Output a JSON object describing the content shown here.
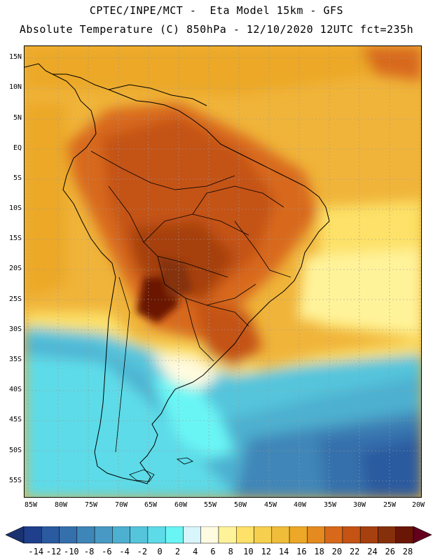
{
  "header": {
    "line1": "CPTEC/INPE/MCT -  Eta Model 15km - GFS",
    "line2": "Absolute Temperature (C) 850hPa - 12/10/2020 12UTC fct=235h"
  },
  "map": {
    "lat_labels": [
      "15N",
      "10N",
      "5N",
      "EQ",
      "5S",
      "10S",
      "15S",
      "20S",
      "25S",
      "30S",
      "35S",
      "40S",
      "45S",
      "50S",
      "55S"
    ],
    "lon_labels": [
      "85W",
      "80W",
      "75W",
      "70W",
      "65W",
      "60W",
      "55W",
      "50W",
      "45W",
      "40W",
      "35W",
      "30W",
      "25W",
      "20W"
    ]
  },
  "colorbar": {
    "labels": [
      "-14",
      "-12",
      "-10",
      "-8",
      "-6",
      "-4",
      "-2",
      "0",
      "2",
      "4",
      "6",
      "8",
      "10",
      "12",
      "14",
      "16",
      "18",
      "20",
      "22",
      "24",
      "26",
      "28"
    ],
    "colors": [
      "#1f3f8c",
      "#2a5a9f",
      "#3570ac",
      "#3f86b8",
      "#489ac4",
      "#4eb0d0",
      "#55c5dc",
      "#5ddbe8",
      "#6af5f5",
      "#d8f5fb",
      "#fffbe0",
      "#fff39a",
      "#fde168",
      "#f6cf4e",
      "#f0bd3a",
      "#eca826",
      "#e48a1f",
      "#d8691a",
      "#c45314",
      "#a6400f",
      "#85300b",
      "#6a1606"
    ],
    "low_arrow": "#1a3270",
    "high_arrow": "#64001e"
  }
}
